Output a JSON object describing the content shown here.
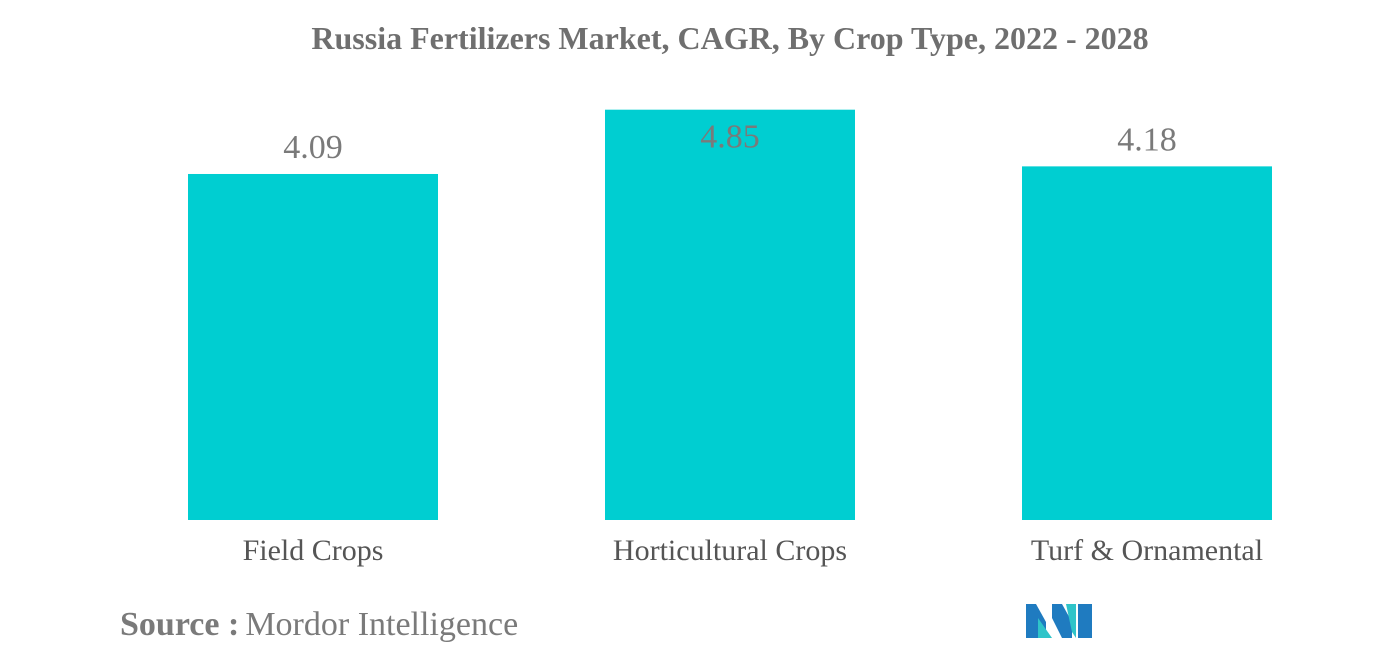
{
  "chart_data": {
    "type": "bar",
    "title": "Russia Fertilizers Market, CAGR, By Crop Type, 2022 - 2028",
    "categories": [
      "Field Crops",
      "Horticultural Crops",
      "Turf & Ornamental"
    ],
    "values": [
      4.09,
      4.85,
      4.18
    ],
    "data_labels": [
      "4.09",
      "4.85",
      "4.18"
    ],
    "xlabel": "",
    "ylabel": "",
    "grid": false,
    "bar_color": "#00ced1"
  },
  "footer": {
    "source_label": "Source :",
    "source_value": "Mordor Intelligence"
  },
  "logo": {
    "icon": "mordor-intelligence-logo",
    "colors": [
      "#1f7bc0",
      "#2fc4c9"
    ]
  }
}
